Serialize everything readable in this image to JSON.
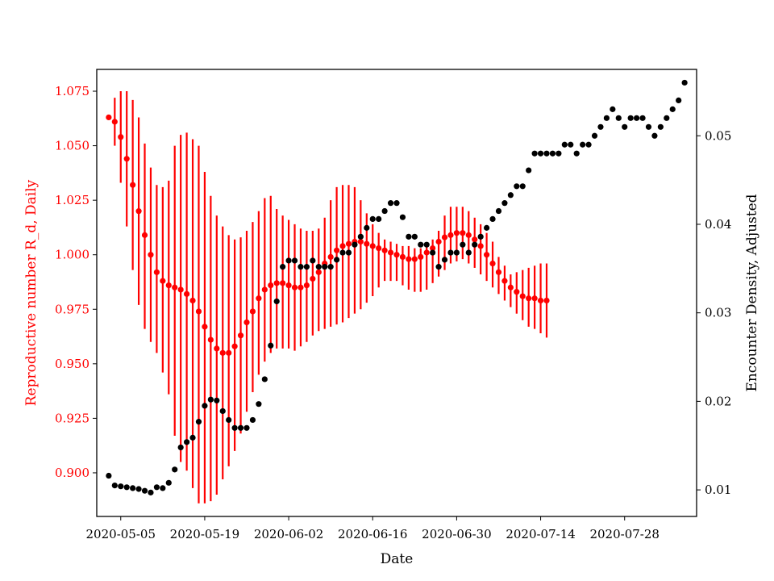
{
  "chart_data": {
    "type": "scatter",
    "xlabel": "Date",
    "ylabel_left": "Reproductive number R_d, Daily",
    "ylabel_right": "Encounter Density, Adjusted",
    "xlim": [
      "2020-05-01",
      "2020-08-09"
    ],
    "ylim_left": [
      0.88,
      1.085
    ],
    "ylim_right": [
      0.007,
      0.0575
    ],
    "x_ticks": [
      "2020-05-05",
      "2020-05-19",
      "2020-06-02",
      "2020-06-16",
      "2020-06-30",
      "2020-07-14",
      "2020-07-28"
    ],
    "y_ticks_left": [
      "0.900",
      "0.925",
      "0.950",
      "0.975",
      "1.000",
      "1.025",
      "1.050",
      "1.075"
    ],
    "y_ticks_right": [
      "0.01",
      "0.02",
      "0.03",
      "0.04",
      "0.05"
    ],
    "colors": {
      "r_series": "#ff0000",
      "density_series": "#000000",
      "left_axis_text": "#ff0000",
      "right_axis_text": "#000000"
    },
    "grid": false,
    "legend": "none",
    "series": [
      {
        "axis": "left",
        "color": "#ff0000",
        "error_bars": true,
        "x_start": "2020-05-03",
        "values": [
          1.063,
          1.061,
          1.054,
          1.044,
          1.032,
          1.02,
          1.009,
          1.0,
          0.992,
          0.988,
          0.986,
          0.985,
          0.984,
          0.982,
          0.979,
          0.974,
          0.967,
          0.961,
          0.957,
          0.955,
          0.955,
          0.958,
          0.963,
          0.969,
          0.974,
          0.98,
          0.984,
          0.986,
          0.987,
          0.987,
          0.986,
          0.985,
          0.985,
          0.986,
          0.989,
          0.992,
          0.996,
          0.999,
          1.002,
          1.004,
          1.005,
          1.006,
          1.006,
          1.005,
          1.004,
          1.003,
          1.002,
          1.001,
          1.0,
          0.999,
          0.998,
          0.998,
          0.999,
          1.001,
          1.003,
          1.006,
          1.008,
          1.009,
          1.01,
          1.01,
          1.009,
          1.007,
          1.004,
          1.0,
          0.996,
          0.992,
          0.988,
          0.985,
          0.983,
          0.981,
          0.98,
          0.98,
          0.979,
          0.979
        ],
        "lower": [
          1.063,
          1.05,
          1.033,
          1.013,
          0.993,
          0.977,
          0.966,
          0.96,
          0.955,
          0.946,
          0.936,
          0.917,
          0.905,
          0.901,
          0.893,
          0.886,
          0.886,
          0.887,
          0.89,
          0.897,
          0.903,
          0.91,
          0.918,
          0.928,
          0.937,
          0.945,
          0.951,
          0.955,
          0.957,
          0.957,
          0.957,
          0.956,
          0.958,
          0.96,
          0.963,
          0.965,
          0.966,
          0.967,
          0.968,
          0.969,
          0.971,
          0.973,
          0.975,
          0.978,
          0.981,
          0.985,
          0.988,
          0.988,
          0.988,
          0.986,
          0.984,
          0.983,
          0.983,
          0.984,
          0.987,
          0.99,
          0.993,
          0.996,
          0.997,
          0.998,
          0.996,
          0.994,
          0.991,
          0.988,
          0.985,
          0.982,
          0.979,
          0.976,
          0.973,
          0.97,
          0.967,
          0.966,
          0.964,
          0.962
        ],
        "upper": [
          1.063,
          1.072,
          1.075,
          1.075,
          1.071,
          1.063,
          1.051,
          1.04,
          1.032,
          1.031,
          1.034,
          1.05,
          1.055,
          1.056,
          1.053,
          1.05,
          1.038,
          1.027,
          1.018,
          1.013,
          1.009,
          1.007,
          1.008,
          1.011,
          1.015,
          1.02,
          1.026,
          1.027,
          1.021,
          1.018,
          1.016,
          1.014,
          1.012,
          1.011,
          1.011,
          1.012,
          1.017,
          1.025,
          1.031,
          1.032,
          1.032,
          1.031,
          1.025,
          1.019,
          1.014,
          1.01,
          1.007,
          1.006,
          1.005,
          1.004,
          1.004,
          1.003,
          1.003,
          1.004,
          1.007,
          1.011,
          1.018,
          1.022,
          1.022,
          1.022,
          1.02,
          1.017,
          1.014,
          1.01,
          1.006,
          0.999,
          0.995,
          0.991,
          0.992,
          0.993,
          0.994,
          0.995,
          0.996,
          0.996
        ]
      },
      {
        "axis": "right",
        "color": "#000000",
        "error_bars": false,
        "x_start": "2020-05-03",
        "values": [
          0.0116,
          0.0105,
          0.0104,
          0.0103,
          0.0102,
          0.0101,
          0.0099,
          0.0097,
          0.0103,
          0.0102,
          0.0108,
          0.0123,
          0.0148,
          0.0154,
          0.0159,
          0.0177,
          0.0195,
          0.0202,
          0.0201,
          0.0189,
          0.0179,
          0.017,
          0.017,
          0.017,
          0.0179,
          0.0197,
          0.0225,
          0.0263,
          0.0313,
          0.0352,
          0.0359,
          0.0359,
          0.0352,
          0.0352,
          0.0359,
          0.0352,
          0.0352,
          0.0352,
          0.036,
          0.0368,
          0.0368,
          0.0377,
          0.0386,
          0.0396,
          0.0406,
          0.0406,
          0.0415,
          0.0424,
          0.0424,
          0.0408,
          0.0386,
          0.0386,
          0.0377,
          0.0377,
          0.0368,
          0.0352,
          0.036,
          0.0368,
          0.0368,
          0.0377,
          0.0368,
          0.0377,
          0.0386,
          0.0396,
          0.0406,
          0.0415,
          0.0424,
          0.0433,
          0.0443,
          0.0443,
          0.0461,
          0.048,
          0.048,
          0.048,
          0.048,
          0.048,
          0.049,
          0.049,
          0.048,
          0.049,
          0.049,
          0.05,
          0.051,
          0.052,
          0.053,
          0.052,
          0.051,
          0.052,
          0.052,
          0.052,
          0.051,
          0.05,
          0.051,
          0.052,
          0.053,
          0.054,
          0.056
        ]
      }
    ]
  }
}
